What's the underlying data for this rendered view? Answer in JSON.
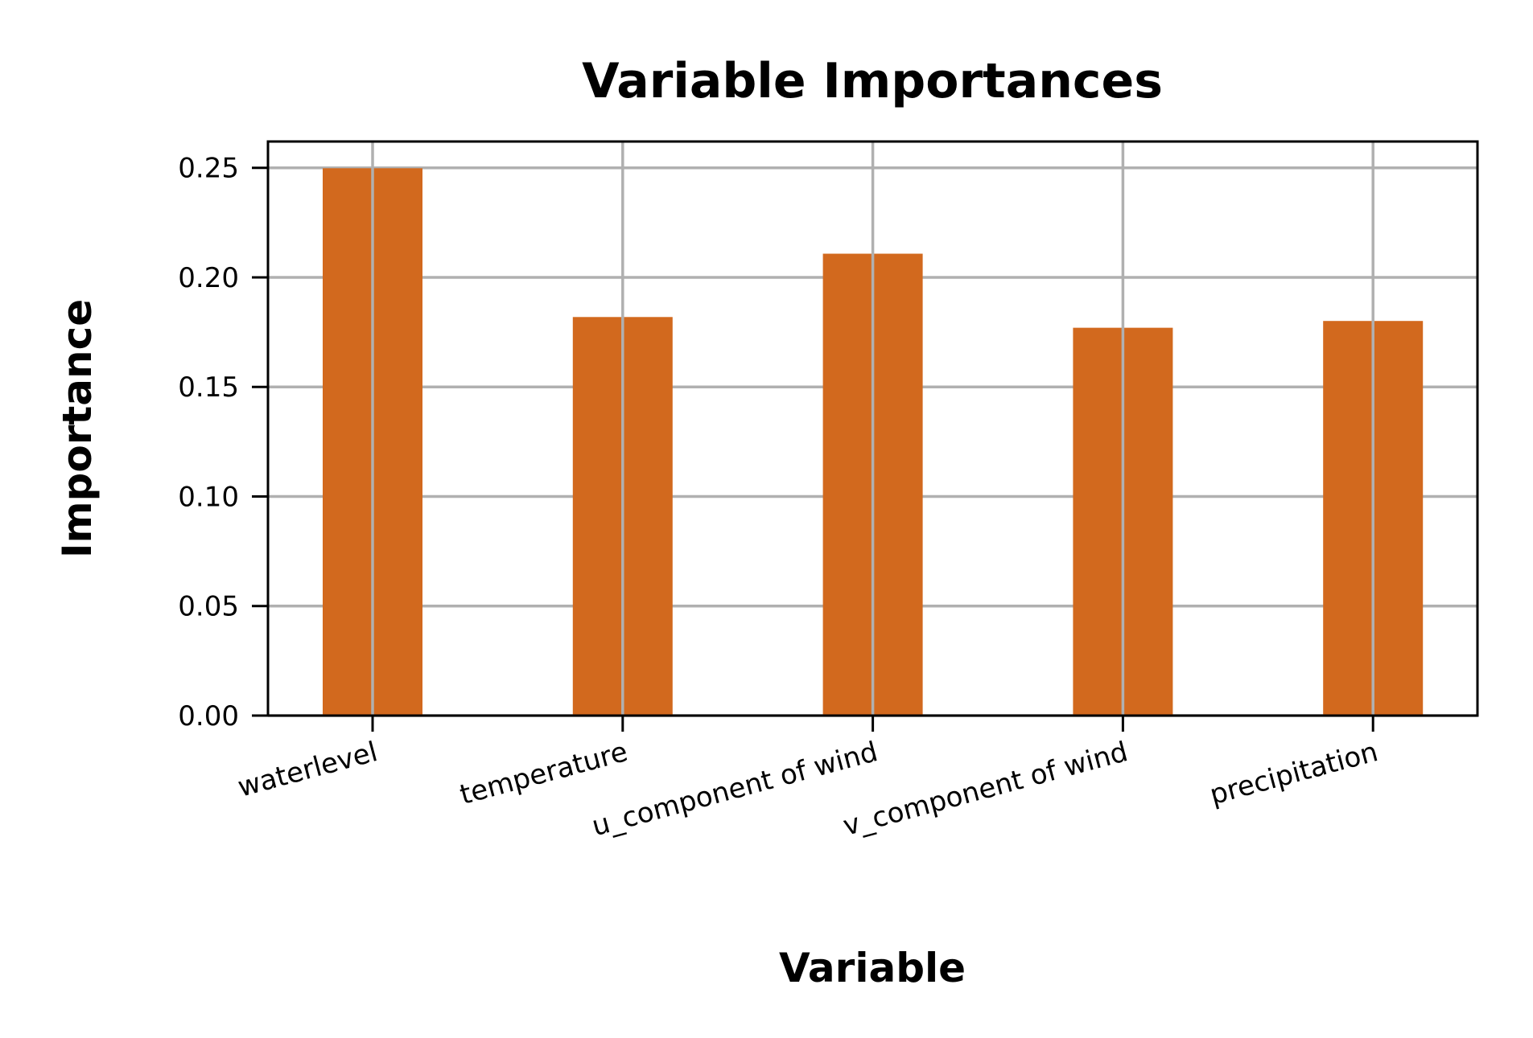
{
  "chart_data": {
    "type": "bar",
    "title": "Variable Importances",
    "xlabel": "Variable",
    "ylabel": "Importance",
    "categories": [
      "waterlevel",
      "temperature",
      "u_component of wind",
      "v_component of wind",
      "precipitation"
    ],
    "values": [
      0.2498,
      0.1819,
      0.2108,
      0.177,
      0.1801
    ],
    "ylim": [
      0,
      0.262
    ],
    "yticks": [
      "0.00",
      "0.05",
      "0.10",
      "0.15",
      "0.20",
      "0.25"
    ],
    "grid": true,
    "legend": "none",
    "colors": {
      "bar": "#d2691e",
      "grid": "#b0b0b0",
      "axis": "#000000"
    }
  }
}
